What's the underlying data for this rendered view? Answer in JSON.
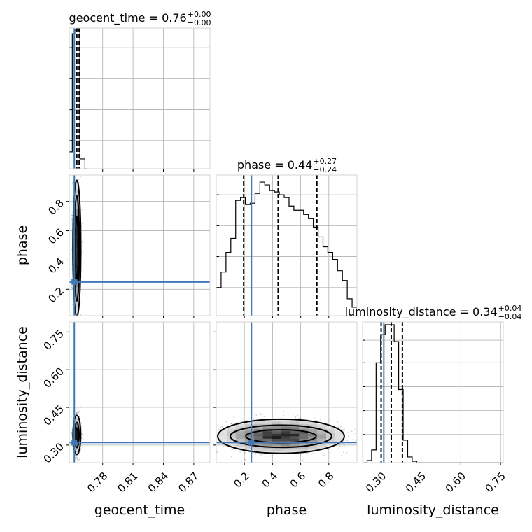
{
  "chart_data": {
    "type": "corner",
    "parameters": [
      "geocent_time",
      "phase",
      "luminosity_distance"
    ],
    "truths": {
      "geocent_time": 0.752,
      "phase": 0.25,
      "luminosity_distance": 0.31
    },
    "colors": {
      "truth": "#4178b4",
      "hist": "#000000",
      "grid": "#b0b0b0",
      "frame": "#d3d3d3"
    },
    "grid": true,
    "panels": {
      "geocent_time_hist": {
        "title": {
          "main": "geocent_time = 0.76",
          "sup": "+0.00",
          "sub": "−0.00"
        },
        "xlim": [
          0.747,
          0.886
        ],
        "quantiles": [
          0.754,
          0.7555,
          0.757
        ],
        "bins": [
          {
            "x0": 0.743,
            "x1": 0.75,
            "v": 0.12
          },
          {
            "x0": 0.75,
            "x1": 0.7525,
            "v": 0.96
          },
          {
            "x0": 0.7525,
            "x1": 0.7575,
            "v": 0.985
          },
          {
            "x0": 0.7575,
            "x1": 0.7625,
            "v": 0.07
          },
          {
            "x0": 0.7625,
            "x1": 0.765,
            "v": 0.0
          }
        ]
      },
      "phase_hist": {
        "title": {
          "main": "phase = 0.44",
          "sup": "+0.27",
          "sub": "−0.24"
        },
        "xlim": [
          0.0,
          1.0
        ],
        "quantiles": [
          0.195,
          0.44,
          0.715
        ],
        "counts": [
          0.2,
          0.31,
          0.45,
          0.55,
          0.82,
          0.84,
          0.79,
          0.8,
          0.87,
          0.95,
          0.93,
          0.89,
          0.88,
          0.86,
          0.84,
          0.78,
          0.75,
          0.75,
          0.72,
          0.69,
          0.63,
          0.56,
          0.49,
          0.45,
          0.4,
          0.32,
          0.25,
          0.12,
          0.06
        ]
      },
      "luminosity_distance_hist": {
        "title": {
          "main": "luminosity_distance = 0.34",
          "sup": "+0.04",
          "sub": "−0.04"
        },
        "xlim": [
          0.23,
          0.76
        ],
        "quantiles": [
          0.3,
          0.338,
          0.38
        ],
        "bins": [
          {
            "x0": 0.23,
            "x1": 0.247,
            "v": 0.0
          },
          {
            "x0": 0.247,
            "x1": 0.264,
            "v": 0.015
          },
          {
            "x0": 0.264,
            "x1": 0.281,
            "v": 0.09
          },
          {
            "x0": 0.281,
            "x1": 0.298,
            "v": 0.71
          },
          {
            "x0": 0.298,
            "x1": 0.315,
            "v": 0.91
          },
          {
            "x0": 0.315,
            "x1": 0.332,
            "v": 0.98
          },
          {
            "x0": 0.332,
            "x1": 0.349,
            "v": 0.98
          },
          {
            "x0": 0.349,
            "x1": 0.366,
            "v": 0.86
          },
          {
            "x0": 0.366,
            "x1": 0.383,
            "v": 0.52
          },
          {
            "x0": 0.383,
            "x1": 0.4,
            "v": 0.16
          },
          {
            "x0": 0.4,
            "x1": 0.417,
            "v": 0.04
          },
          {
            "x0": 0.417,
            "x1": 0.434,
            "v": 0.01
          },
          {
            "x0": 0.434,
            "x1": 0.47,
            "v": 0.0
          }
        ]
      },
      "phase_vs_geocent_time": {
        "xlim": [
          0.747,
          0.886
        ],
        "ylim": [
          0.02,
          0.98
        ],
        "center": [
          0.7545,
          0.48
        ],
        "contours": [
          {
            "rx": 0.0039,
            "ry": 0.465
          },
          {
            "rx": 0.0024,
            "ry": 0.36
          },
          {
            "rx": 0.0012,
            "ry": 0.22
          }
        ]
      },
      "luminosity_distance_vs_geocent_time": {
        "xlim": [
          0.747,
          0.886
        ],
        "ylim": [
          0.23,
          0.79
        ],
        "center": [
          0.7545,
          0.34
        ],
        "contours": [
          {
            "rx": 0.0038,
            "ry": 0.078
          },
          {
            "rx": 0.0022,
            "ry": 0.05
          },
          {
            "rx": 0.001,
            "ry": 0.028
          }
        ]
      },
      "luminosity_distance_vs_phase": {
        "xlim": [
          0.0,
          1.0
        ],
        "ylim": [
          0.23,
          0.79
        ],
        "center": [
          0.46,
          0.335
        ],
        "contours": [
          {
            "rx": 0.45,
            "ry": 0.068
          },
          {
            "rx": 0.36,
            "ry": 0.044
          },
          {
            "rx": 0.25,
            "ry": 0.026
          }
        ]
      }
    },
    "axes": {
      "geocent_time": {
        "label": "geocent_time",
        "ticks": [
          0.78,
          0.81,
          0.84,
          0.87
        ],
        "tick_labels": [
          "0.78",
          "0.81",
          "0.84",
          "0.87"
        ]
      },
      "phase": {
        "label": "phase",
        "ticks": [
          0.2,
          0.4,
          0.6,
          0.8
        ],
        "tick_labels": [
          "0.2",
          "0.4",
          "0.6",
          "0.8"
        ]
      },
      "luminosity_distance": {
        "label": "luminosity_distance",
        "ticks": [
          0.3,
          0.45,
          0.6,
          0.75
        ],
        "tick_labels": [
          "0.30",
          "0.45",
          "0.60",
          "0.75"
        ]
      }
    }
  }
}
